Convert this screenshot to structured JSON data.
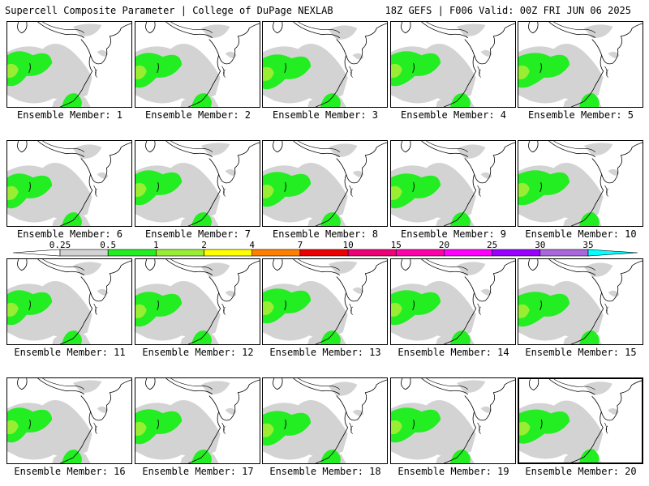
{
  "header": {
    "left": "Supercell Composite Parameter | College of DuPage NEXLAB",
    "right": "18Z GEFS | F006 Valid: 00Z FRI JUN 06 2025"
  },
  "panels": [
    {
      "label": "Ensemble Member: 1"
    },
    {
      "label": "Ensemble Member: 2"
    },
    {
      "label": "Ensemble Member: 3"
    },
    {
      "label": "Ensemble Member: 4"
    },
    {
      "label": "Ensemble Member: 5"
    },
    {
      "label": "Ensemble Member: 6"
    },
    {
      "label": "Ensemble Member: 7"
    },
    {
      "label": "Ensemble Member: 8"
    },
    {
      "label": "Ensemble Member: 9"
    },
    {
      "label": "Ensemble Member: 10"
    },
    {
      "label": "Ensemble Member: 11"
    },
    {
      "label": "Ensemble Member: 12"
    },
    {
      "label": "Ensemble Member: 13"
    },
    {
      "label": "Ensemble Member: 14"
    },
    {
      "label": "Ensemble Member: 15"
    },
    {
      "label": "Ensemble Member: 16"
    },
    {
      "label": "Ensemble Member: 17"
    },
    {
      "label": "Ensemble Member: 18"
    },
    {
      "label": "Ensemble Member: 19"
    },
    {
      "label": "Ensemble Member: 20",
      "selected": true
    }
  ],
  "colorbar": {
    "levels": [
      "0.25",
      "0.5",
      "1",
      "2",
      "4",
      "7",
      "10",
      "15",
      "20",
      "25",
      "30",
      "35"
    ],
    "colors": [
      "#d3d3d3",
      "#22ee22",
      "#99ee33",
      "#ffff00",
      "#ff8000",
      "#ee0000",
      "#ee0077",
      "#ff00aa",
      "#ff00ff",
      "#9900ff",
      "#aa66dd",
      "#00ffff"
    ]
  }
}
